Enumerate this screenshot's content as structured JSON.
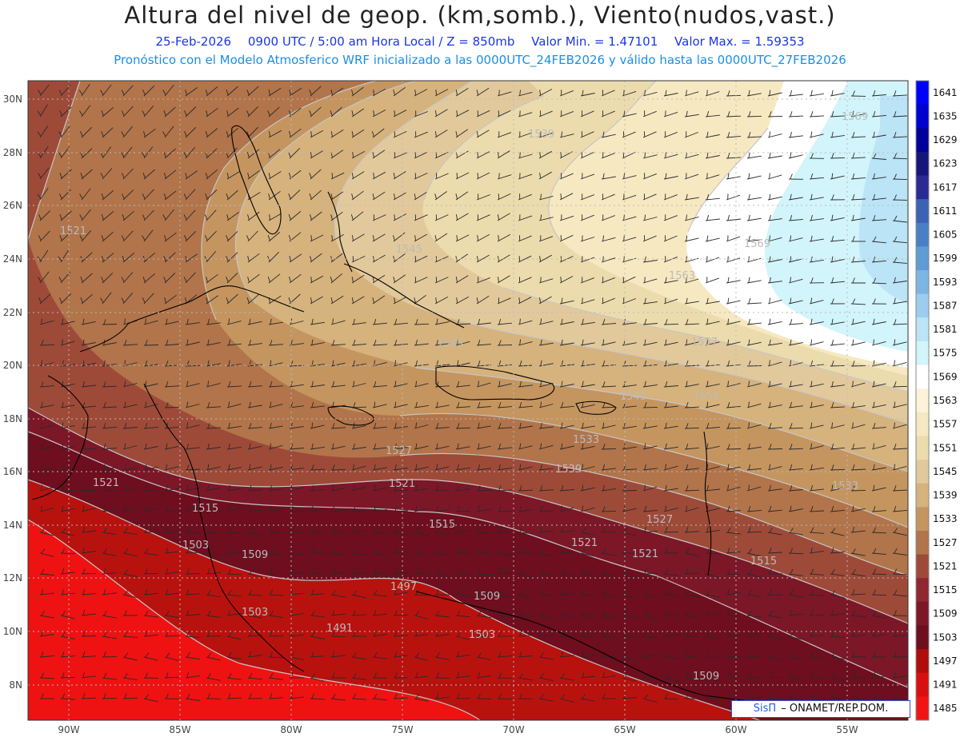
{
  "header": {
    "title": "Altura del nivel de geop. (km,somb.), Viento(nudos,vast.)",
    "date": "25-Feb-2026",
    "time": "0900 UTC / 5:00 am Hora Local / Z = 850mb",
    "vmin": "Valor Min. = 1.47101",
    "vmax": "Valor Max. = 1.59353",
    "model_line": "Pronóstico con el Modelo Atmosferico WRF inicializado a las 0000UTC_24FEB2026 y válido hasta las  0000UTC_27FEB2026"
  },
  "axes": {
    "lat_labels": [
      "30N",
      "28N",
      "26N",
      "24N",
      "22N",
      "20N",
      "18N",
      "16N",
      "14N",
      "12N",
      "10N",
      "8N"
    ],
    "lon_labels": [
      "90W",
      "85W",
      "80W",
      "75W",
      "70W",
      "65W",
      "60W",
      "55W"
    ]
  },
  "contour_labels": [
    "1539",
    "1569",
    "1521",
    "1545",
    "1569",
    "1563",
    "1545",
    "1557",
    "1545",
    "1551",
    "1533",
    "1527",
    "1539",
    "1521",
    "1521",
    "1533",
    "1521",
    "1515",
    "1527",
    "1503",
    "1509",
    "1515",
    "1521",
    "1515",
    "1497",
    "1509",
    "1503",
    "1491",
    "1503",
    "1509"
  ],
  "colorbar": {
    "levels": [
      "1641",
      "1635",
      "1629",
      "1623",
      "1617",
      "1611",
      "1605",
      "1599",
      "1593",
      "1587",
      "1581",
      "1575",
      "1569",
      "1563",
      "1557",
      "1551",
      "1545",
      "1539",
      "1533",
      "1527",
      "1521",
      "1515",
      "1509",
      "1503",
      "1497",
      "1491",
      "1485"
    ],
    "colors": [
      "#0000ff",
      "#0000d0",
      "#00009a",
      "#15157a",
      "#2a2a95",
      "#3d62b4",
      "#4a7fc7",
      "#5f9bd5",
      "#7cb5e2",
      "#9dcdee",
      "#bbe4f6",
      "#d2f4fb",
      "#ffffff",
      "#fdf3d8",
      "#f6e8c1",
      "#ecdbac",
      "#e2c99b",
      "#d6b27c",
      "#c59560",
      "#b2744a",
      "#9e4a39",
      "#8f2630",
      "#7c1728",
      "#6e0e1f",
      "#b00d0d",
      "#d90f0f",
      "#f21414"
    ]
  },
  "credit": {
    "brand": "SisΠ",
    "text": "– ONAMET/REP.DOM."
  }
}
